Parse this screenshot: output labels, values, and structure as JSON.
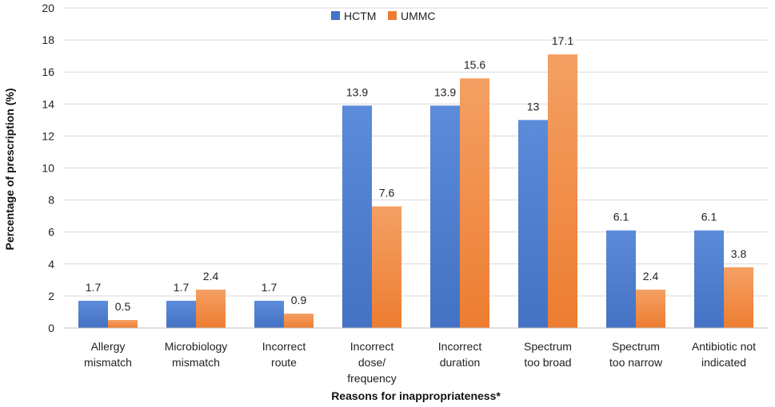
{
  "chart_data": {
    "type": "bar",
    "title": "",
    "xlabel": "Reasons for inappropriateness*",
    "ylabel": "Percentage of prescription (%)",
    "ylim": [
      0,
      20
    ],
    "yticks": [
      0,
      2,
      4,
      6,
      8,
      10,
      12,
      14,
      16,
      18,
      20
    ],
    "grid": true,
    "legend_position": "top-center",
    "categories": [
      [
        "Allergy",
        "mismatch"
      ],
      [
        "Microbiology",
        "mismatch"
      ],
      [
        "Incorrect",
        "route"
      ],
      [
        "Incorrect",
        "dose/",
        "frequency"
      ],
      [
        "Incorrect",
        "duration"
      ],
      [
        "Spectrum",
        "too broad"
      ],
      [
        "Spectrum",
        "too narrow"
      ],
      [
        "Antibiotic not",
        "indicated"
      ]
    ],
    "series": [
      {
        "name": "HCTM",
        "color": "#4472C4",
        "color_top": "#5B8BD9",
        "values": [
          1.7,
          1.7,
          1.7,
          13.9,
          13.9,
          13,
          6.1,
          6.1
        ],
        "labels": [
          "1.7",
          "1.7",
          "1.7",
          "13.9",
          "13.9",
          "13",
          "6.1",
          "6.1"
        ]
      },
      {
        "name": "UMMC",
        "color": "#ED7D31",
        "color_top": "#F4A064",
        "values": [
          0.5,
          2.4,
          0.9,
          7.6,
          15.6,
          17.1,
          2.4,
          3.8
        ],
        "labels": [
          "0.5",
          "2.4",
          "0.9",
          "7.6",
          "15.6",
          "17.1",
          "2.4",
          "3.8"
        ]
      }
    ]
  }
}
